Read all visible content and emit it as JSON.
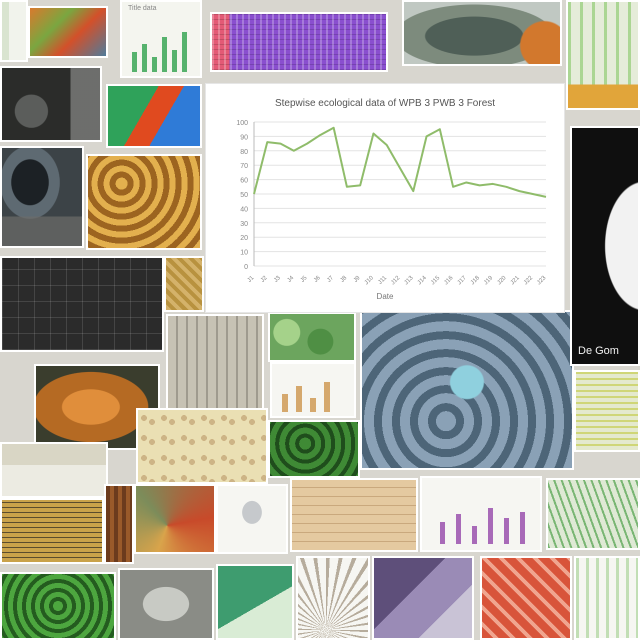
{
  "collage": {
    "tiles": [
      {
        "name": "tile-top-left-chart",
        "bg": "#e9efe6"
      },
      {
        "name": "tile-colorful-map",
        "bg": "#c9622f"
      },
      {
        "name": "tile-green-bar-chart",
        "bg": "#f4f5ef"
      },
      {
        "name": "tile-purple-heatmap",
        "bg": "#e35a76"
      },
      {
        "name": "tile-fossil-photo",
        "bg": "#7d8b7d"
      },
      {
        "name": "tile-plant-illustration",
        "bg": "#e5ecd9"
      },
      {
        "name": "tile-dark-scan",
        "bg": "#2b2c2a"
      },
      {
        "name": "tile-rainbow-3d",
        "bg": "#2fa25a"
      },
      {
        "name": "tile-eye-photo",
        "bg": "#3c4347"
      },
      {
        "name": "tile-golden-texture",
        "bg": "#b0782c"
      },
      {
        "name": "tile-dark-grid",
        "bg": "#2b2b2b"
      },
      {
        "name": "tile-tan-pattern",
        "bg": "#d4b26a"
      },
      {
        "name": "tile-city-blocks",
        "bg": "#c7c2b4"
      },
      {
        "name": "tile-green-leaves",
        "bg": "#6ca55e"
      },
      {
        "name": "tile-blue-3d-structure",
        "bg": "#4d6578"
      },
      {
        "name": "tile-dark-portrait",
        "bg": "#0f0f0f"
      },
      {
        "name": "tile-bone-photo",
        "bg": "#b56a23"
      },
      {
        "name": "tile-yellow-map",
        "bg": "#eadfb3"
      },
      {
        "name": "tile-spreadsheet",
        "bg": "#e0e6c4"
      },
      {
        "name": "tile-mustard-panel",
        "bg": "#c9a24a"
      },
      {
        "name": "tile-sketch",
        "bg": "#ecebe2"
      },
      {
        "name": "tile-brown-texture",
        "bg": "#6c3b1d"
      },
      {
        "name": "tile-segmented-bone",
        "bg": "#d9a44b"
      },
      {
        "name": "tile-bar-chart-purple",
        "bg": "#f2f0ee"
      },
      {
        "name": "tile-green-lines",
        "bg": "#dfe9d5"
      },
      {
        "name": "tile-green-moss",
        "bg": "#3f8a35"
      },
      {
        "name": "tile-grey-rock",
        "bg": "#a8aaa4"
      },
      {
        "name": "tile-green-diagram",
        "bg": "#3e9c6f"
      },
      {
        "name": "tile-purple-specimen",
        "bg": "#7b6c9a"
      },
      {
        "name": "tile-red-cubes",
        "bg": "#d8543a"
      },
      {
        "name": "tile-bottom-table",
        "bg": "#eeeeea"
      }
    ]
  },
  "main_chart": {
    "title": "Stepwise ecological data of WPB 3 PWB 3 Forest",
    "xtitle": "Date",
    "line_color": "#8fbc6a",
    "chart_data": {
      "type": "line",
      "title": "Stepwise ecological data of WPB 3 PWB 3 Forest",
      "xlabel": "Date",
      "ylabel": "",
      "ylim": [
        0,
        100
      ],
      "y_ticks": [
        0,
        10,
        20,
        30,
        40,
        50,
        60,
        70,
        80,
        90,
        100
      ],
      "categories": [
        "J1",
        "J2",
        "J3",
        "J4",
        "J5",
        "J6",
        "J7",
        "J8",
        "J9",
        "J10",
        "J11",
        "J12",
        "J13",
        "J14",
        "J15",
        "J16",
        "J17",
        "J18",
        "J19",
        "J20",
        "J21",
        "J22",
        "J23"
      ],
      "series": [
        {
          "values": [
            50,
            86,
            85,
            80,
            85,
            91,
            96,
            55,
            56,
            92,
            84,
            68,
            52,
            90,
            95,
            55,
            58,
            56,
            57,
            55,
            52,
            50,
            48
          ]
        }
      ],
      "grid": true
    }
  },
  "overlay_text": "De Gom"
}
